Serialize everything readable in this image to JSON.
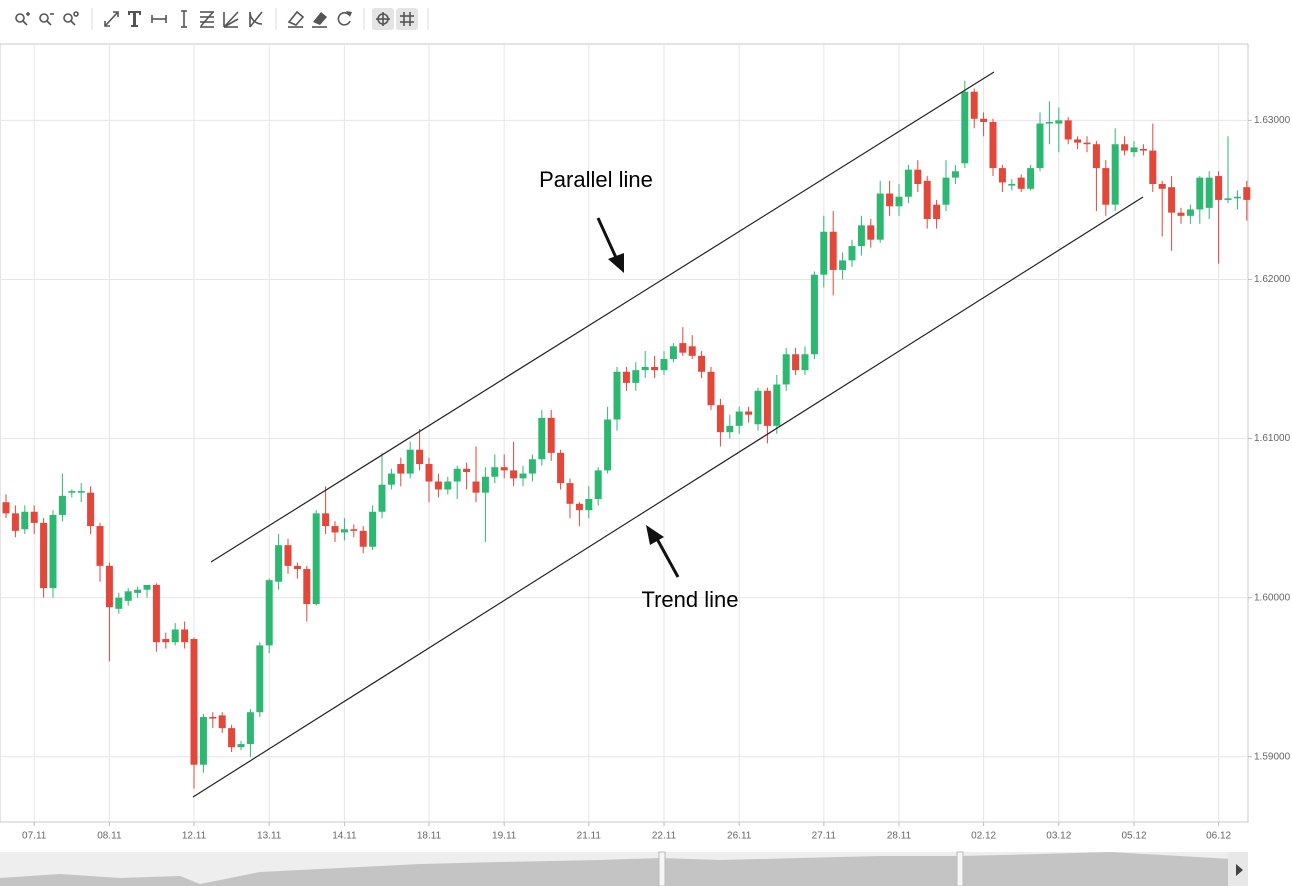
{
  "chart_data": {
    "type": "candlestick",
    "categories": [
      null,
      null,
      null,
      "07.11",
      null,
      null,
      null,
      null,
      null,
      null,
      null,
      "08.11",
      null,
      null,
      null,
      null,
      null,
      null,
      null,
      null,
      "12.11",
      null,
      null,
      null,
      null,
      null,
      null,
      null,
      "13.11",
      null,
      null,
      null,
      null,
      null,
      null,
      null,
      "14.11",
      null,
      null,
      null,
      null,
      null,
      null,
      null,
      null,
      "18.11",
      null,
      null,
      null,
      null,
      null,
      null,
      null,
      "19.11",
      null,
      null,
      null,
      null,
      null,
      null,
      null,
      null,
      "21.11",
      null,
      null,
      null,
      null,
      null,
      null,
      null,
      "22.11",
      null,
      null,
      null,
      null,
      null,
      null,
      null,
      "26.11",
      null,
      null,
      null,
      null,
      null,
      null,
      null,
      null,
      "27.11",
      null,
      null,
      null,
      null,
      null,
      null,
      null,
      "28.11",
      null,
      null,
      null,
      null,
      null,
      null,
      null,
      null,
      "02.12",
      null,
      null,
      null,
      null,
      null,
      null,
      null,
      "03.12",
      null,
      null,
      null,
      null,
      null,
      null,
      null,
      "05.12",
      null,
      null,
      null,
      null,
      null,
      null,
      null,
      null,
      "06.12",
      null,
      null,
      null
    ],
    "open": [
      1.606,
      1.6053,
      1.6043,
      1.6054,
      1.6047,
      1.6006,
      1.6052,
      1.6066,
      1.6066,
      1.6066,
      1.6045,
      1.602,
      1.5993,
      1.5998,
      1.6003,
      1.6005,
      1.6008,
      1.5974,
      1.5972,
      1.598,
      1.5974,
      1.5895,
      1.5925,
      1.5926,
      1.5918,
      1.5906,
      1.5908,
      1.5928,
      1.597,
      1.601,
      1.6033,
      1.602,
      1.6018,
      1.5996,
      1.6053,
      1.6045,
      1.6041,
      1.6043,
      1.6042,
      1.6032,
      1.6054,
      1.6071,
      1.6084,
      1.6078,
      1.6093,
      1.6084,
      1.6073,
      1.6068,
      1.6073,
      1.6081,
      1.6073,
      1.6066,
      1.6076,
      1.6082,
      1.608,
      1.6075,
      1.6078,
      1.6087,
      1.6113,
      1.6091,
      1.6072,
      1.6059,
      1.6055,
      1.6062,
      1.608,
      1.6112,
      1.6142,
      1.6135,
      1.6143,
      1.6145,
      1.6143,
      1.615,
      1.616,
      1.6158,
      1.6152,
      1.6142,
      1.6121,
      1.6104,
      1.6108,
      1.6117,
      1.6109,
      1.613,
      1.6108,
      1.6134,
      1.6153,
      1.6143,
      1.6153,
      1.6203,
      1.623,
      1.6206,
      1.6212,
      1.6221,
      1.6234,
      1.6225,
      1.6254,
      1.6246,
      1.6252,
      1.6269,
      1.6262,
      1.6247,
      1.6247,
      1.6264,
      1.6273,
      1.6318,
      1.6301,
      1.6299,
      1.627,
      1.6259,
      1.6264,
      1.6257,
      1.627,
      1.6298,
      1.6298,
      1.63,
      1.6288,
      1.6286,
      1.6285,
      1.627,
      1.6247,
      1.6285,
      1.628,
      1.6282,
      1.6281,
      1.626,
      1.6258,
      1.6242,
      1.624,
      1.6244,
      1.6245,
      1.6265,
      1.625,
      1.6251,
      1.6258
    ],
    "high": [
      1.6065,
      1.6058,
      1.6058,
      1.6058,
      1.605,
      1.6055,
      1.6078,
      1.6068,
      1.6072,
      1.607,
      1.6047,
      1.6022,
      1.6003,
      1.6006,
      1.6007,
      1.6008,
      1.6009,
      1.5978,
      1.5984,
      1.5985,
      1.5975,
      1.5927,
      1.5928,
      1.5928,
      1.592,
      1.591,
      1.593,
      1.5972,
      1.6012,
      1.604,
      1.6037,
      1.6022,
      1.602,
      1.6055,
      1.607,
      1.6048,
      1.605,
      1.6046,
      1.6045,
      1.6058,
      1.6091,
      1.6081,
      1.6088,
      1.6098,
      1.6106,
      1.6088,
      1.6078,
      1.6076,
      1.6083,
      1.6085,
      1.6095,
      1.6082,
      1.609,
      1.609,
      1.6098,
      1.6083,
      1.609,
      1.6118,
      1.6118,
      1.6093,
      1.6075,
      1.606,
      1.607,
      1.6082,
      1.612,
      1.6145,
      1.6145,
      1.6148,
      1.6155,
      1.6152,
      1.6155,
      1.616,
      1.617,
      1.6165,
      1.6155,
      1.6145,
      1.6125,
      1.6115,
      1.612,
      1.612,
      1.6132,
      1.6132,
      1.614,
      1.6157,
      1.6157,
      1.6158,
      1.6205,
      1.624,
      1.6243,
      1.6217,
      1.6225,
      1.624,
      1.6238,
      1.6262,
      1.6262,
      1.626,
      1.6272,
      1.6275,
      1.6265,
      1.625,
      1.6275,
      1.6272,
      1.6325,
      1.632,
      1.6305,
      1.6301,
      1.6272,
      1.6263,
      1.6266,
      1.6272,
      1.6305,
      1.6312,
      1.6308,
      1.6302,
      1.629,
      1.629,
      1.6287,
      1.6275,
      1.6295,
      1.629,
      1.6287,
      1.6285,
      1.6298,
      1.6262,
      1.6265,
      1.6245,
      1.6247,
      1.6265,
      1.6268,
      1.6268,
      1.629,
      1.6256,
      1.6262
    ],
    "low": [
      1.605,
      1.6038,
      1.604,
      1.604,
      1.6,
      1.6,
      1.6048,
      1.6063,
      1.606,
      1.604,
      1.601,
      1.596,
      1.599,
      1.5995,
      1.6,
      1.6,
      1.5966,
      1.5968,
      1.597,
      1.5968,
      1.588,
      1.589,
      1.5918,
      1.5915,
      1.5903,
      1.5904,
      1.59,
      1.5925,
      1.5965,
      1.6005,
      1.6015,
      1.6012,
      1.5985,
      1.5995,
      1.604,
      1.6035,
      1.6036,
      1.6038,
      1.6028,
      1.603,
      1.605,
      1.6068,
      1.607,
      1.6075,
      1.608,
      1.606,
      1.6063,
      1.6065,
      1.6062,
      1.6068,
      1.606,
      1.6035,
      1.6072,
      1.6075,
      1.607,
      1.607,
      1.6073,
      1.6083,
      1.6086,
      1.6068,
      1.605,
      1.6045,
      1.605,
      1.6058,
      1.6078,
      1.6105,
      1.613,
      1.613,
      1.6138,
      1.6138,
      1.614,
      1.6148,
      1.6152,
      1.615,
      1.6138,
      1.6118,
      1.6095,
      1.61,
      1.6103,
      1.611,
      1.6105,
      1.6097,
      1.6103,
      1.613,
      1.614,
      1.614,
      1.615,
      1.6195,
      1.619,
      1.62,
      1.6208,
      1.6215,
      1.622,
      1.6223,
      1.624,
      1.624,
      1.6248,
      1.6255,
      1.6232,
      1.6232,
      1.6243,
      1.626,
      1.627,
      1.6295,
      1.629,
      1.6265,
      1.6255,
      1.6256,
      1.6255,
      1.6256,
      1.6268,
      1.6285,
      1.628,
      1.6285,
      1.6282,
      1.628,
      1.6243,
      1.624,
      1.6243,
      1.6278,
      1.6277,
      1.6278,
      1.6255,
      1.6227,
      1.6218,
      1.6235,
      1.6235,
      1.6235,
      1.6238,
      1.621,
      1.6248,
      1.6244,
      1.6237
    ],
    "close": [
      1.6053,
      1.6042,
      1.6054,
      1.6047,
      1.6006,
      1.6052,
      1.6064,
      1.6067,
      1.6067,
      1.6045,
      1.602,
      1.5994,
      1.6,
      1.6004,
      1.6005,
      1.6008,
      1.5972,
      1.5972,
      1.598,
      1.5972,
      1.5895,
      1.5925,
      1.5924,
      1.5918,
      1.5906,
      1.5908,
      1.5928,
      1.597,
      1.6011,
      1.6033,
      1.602,
      1.6018,
      1.5996,
      1.6053,
      1.6045,
      1.6041,
      1.6043,
      1.6042,
      1.6032,
      1.6054,
      1.6071,
      1.6078,
      1.6078,
      1.6093,
      1.6084,
      1.6073,
      1.6068,
      1.6073,
      1.6081,
      1.6079,
      1.6066,
      1.6076,
      1.6082,
      1.608,
      1.6075,
      1.6078,
      1.6087,
      1.6113,
      1.6091,
      1.6072,
      1.6059,
      1.6055,
      1.6062,
      1.608,
      1.6112,
      1.6142,
      1.6135,
      1.6143,
      1.6145,
      1.6143,
      1.615,
      1.6158,
      1.6154,
      1.6152,
      1.6142,
      1.6121,
      1.6104,
      1.6108,
      1.6117,
      1.6115,
      1.613,
      1.6108,
      1.6134,
      1.6153,
      1.6143,
      1.6153,
      1.6203,
      1.623,
      1.6206,
      1.6212,
      1.6221,
      1.6234,
      1.6225,
      1.6254,
      1.6246,
      1.6252,
      1.6269,
      1.626,
      1.6238,
      1.6238,
      1.6264,
      1.6268,
      1.6318,
      1.6301,
      1.6299,
      1.627,
      1.6261,
      1.626,
      1.6257,
      1.627,
      1.6298,
      1.6299,
      1.63,
      1.6288,
      1.6286,
      1.6285,
      1.627,
      1.6247,
      1.6285,
      1.6281,
      1.6283,
      1.6281,
      1.626,
      1.6257,
      1.6242,
      1.624,
      1.6244,
      1.6264,
      1.6264,
      1.625,
      1.6251,
      1.6252,
      1.625
    ],
    "up_color": "#2db872",
    "down_color": "#e2473a",
    "ylim": [
      1.5859,
      1.6348
    ],
    "yticks": [
      {
        "value": 1.63,
        "label": "1.63000"
      },
      {
        "value": 1.62,
        "label": "1.62000"
      },
      {
        "value": 1.61,
        "label": "1.61000"
      },
      {
        "value": 1.6,
        "label": "1.60000"
      },
      {
        "value": 1.59,
        "label": "1.59000"
      }
    ],
    "grid": true,
    "annotations": [
      "Parallel line",
      "Trend line"
    ]
  }
}
